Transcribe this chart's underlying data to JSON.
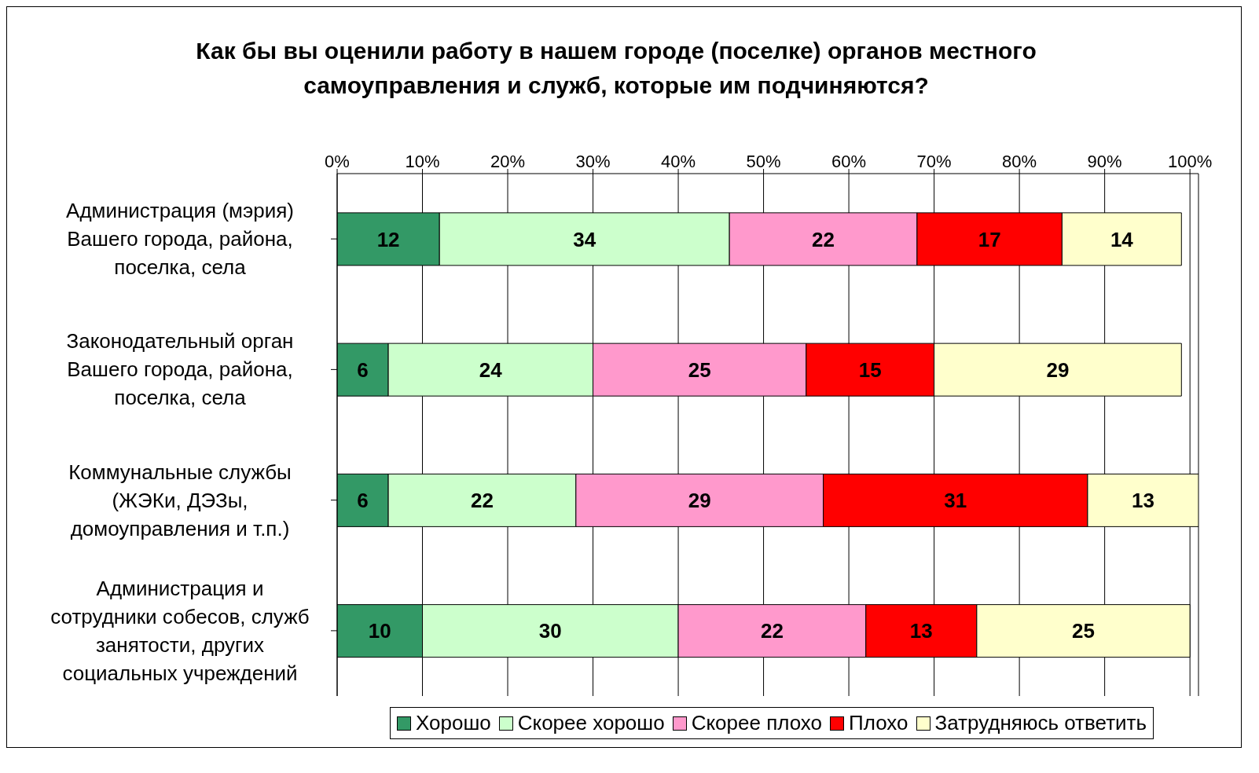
{
  "chart_data": {
    "type": "bar",
    "orientation": "horizontal",
    "stacked": true,
    "title": "Как бы вы оценили работу в нашем городе (поселке) органов местного самоуправления и служб, которые им подчиняются?",
    "categories": [
      "Администрация (мэрия) Вашего города, района, поселка, села",
      "Законодательный орган Вашего города, района, поселка, села",
      "Коммунальные службы (ЖЭКи, ДЭЗы, домоуправления и т.п.)",
      "Администрация и сотрудники собесов, служб занятости, других социальных учреждений"
    ],
    "series": [
      {
        "name": "Хорошо",
        "color": "#339966",
        "values": [
          12,
          6,
          6,
          10
        ]
      },
      {
        "name": "Скорее хорошо",
        "color": "#ccffcc",
        "values": [
          34,
          24,
          22,
          30
        ]
      },
      {
        "name": "Скорее плохо",
        "color": "#ff99cc",
        "values": [
          22,
          25,
          29,
          22
        ]
      },
      {
        "name": "Плохо",
        "color": "#ff0000",
        "values": [
          17,
          15,
          31,
          13
        ]
      },
      {
        "name": "Затрудняюсь ответить",
        "color": "#ffffcc",
        "values": [
          14,
          29,
          13,
          25
        ]
      }
    ],
    "xlim": [
      0,
      101
    ],
    "xticks": [
      {
        "value": 0,
        "label": "0%"
      },
      {
        "value": 10,
        "label": "10%"
      },
      {
        "value": 20,
        "label": "20%"
      },
      {
        "value": 30,
        "label": "30%"
      },
      {
        "value": 40,
        "label": "40%"
      },
      {
        "value": 50,
        "label": "50%"
      },
      {
        "value": 60,
        "label": "60%"
      },
      {
        "value": 70,
        "label": "70%"
      },
      {
        "value": 80,
        "label": "80%"
      },
      {
        "value": 90,
        "label": "90%"
      },
      {
        "value": 100,
        "label": "100%"
      }
    ],
    "grid": "x",
    "legend": "bottom",
    "data_labels": true
  }
}
